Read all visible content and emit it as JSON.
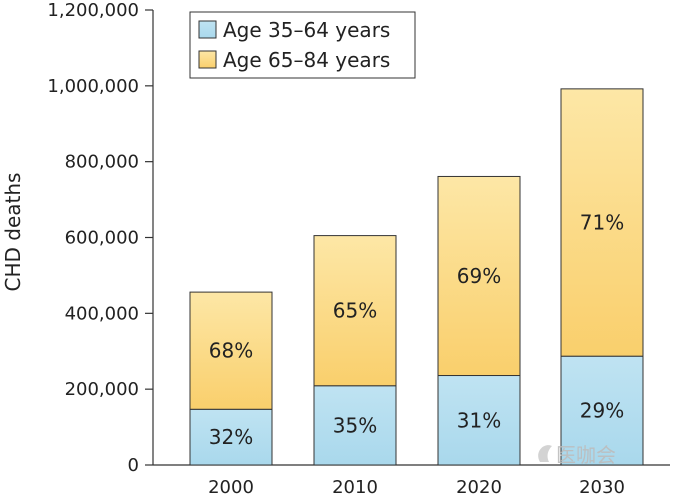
{
  "chart_data": {
    "type": "bar",
    "stacked": true,
    "categories": [
      "2000",
      "2010",
      "2020",
      "2030"
    ],
    "series": [
      {
        "name": "Age 35–64 years",
        "values": [
          147000,
          209000,
          236000,
          287000
        ],
        "labels": [
          "32%",
          "35%",
          "31%",
          "29%"
        ]
      },
      {
        "name": "Age 65–84 years",
        "values": [
          309000,
          396000,
          525000,
          705000
        ],
        "labels": [
          "68%",
          "65%",
          "69%",
          "71%"
        ]
      }
    ],
    "ylabel": "CHD deaths",
    "ylim": [
      0,
      1200000
    ],
    "yticks": [
      0,
      200000,
      400000,
      600000,
      800000,
      1000000,
      1200000
    ],
    "ytick_labels": [
      "0",
      "200,000",
      "400,000",
      "600,000",
      "800,000",
      "1,000,000",
      "1,200,000"
    ],
    "legend_position": "top-left",
    "grid": false,
    "colors": {
      "series": [
        "#bfe3f2",
        "#fde7a6"
      ],
      "series_bottom": [
        "#a9d8ec",
        "#f9cf6c"
      ],
      "bar_stroke": "#333333"
    }
  },
  "watermark": "医咖会"
}
